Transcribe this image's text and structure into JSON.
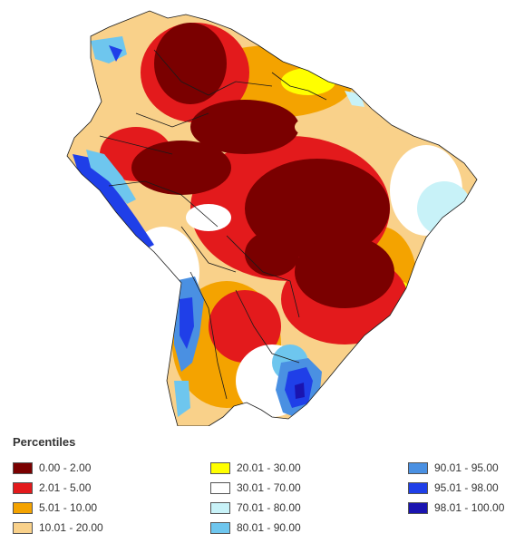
{
  "legend": {
    "title": "Percentiles",
    "columns": [
      [
        {
          "label": "0.00 - 2.00",
          "color": "#7a0000"
        },
        {
          "label": "2.01 - 5.00",
          "color": "#e31a1c"
        },
        {
          "label": "5.01 - 10.00",
          "color": "#f4a300"
        },
        {
          "label": "10.01 - 20.00",
          "color": "#f9d18a"
        }
      ],
      [
        {
          "label": "20.01 - 30.00",
          "color": "#ffff00"
        },
        {
          "label": "30.01 - 70.00",
          "color": "#ffffff"
        },
        {
          "label": "70.01 - 80.00",
          "color": "#c8f2f8"
        },
        {
          "label": "80.01 - 90.00",
          "color": "#6ec6ee"
        }
      ],
      [
        {
          "label": "90.01 - 95.00",
          "color": "#4a90e2"
        },
        {
          "label": "95.01 - 98.00",
          "color": "#1f3fe8"
        },
        {
          "label": "98.01 - 100.00",
          "color": "#1a14b0"
        }
      ]
    ]
  }
}
